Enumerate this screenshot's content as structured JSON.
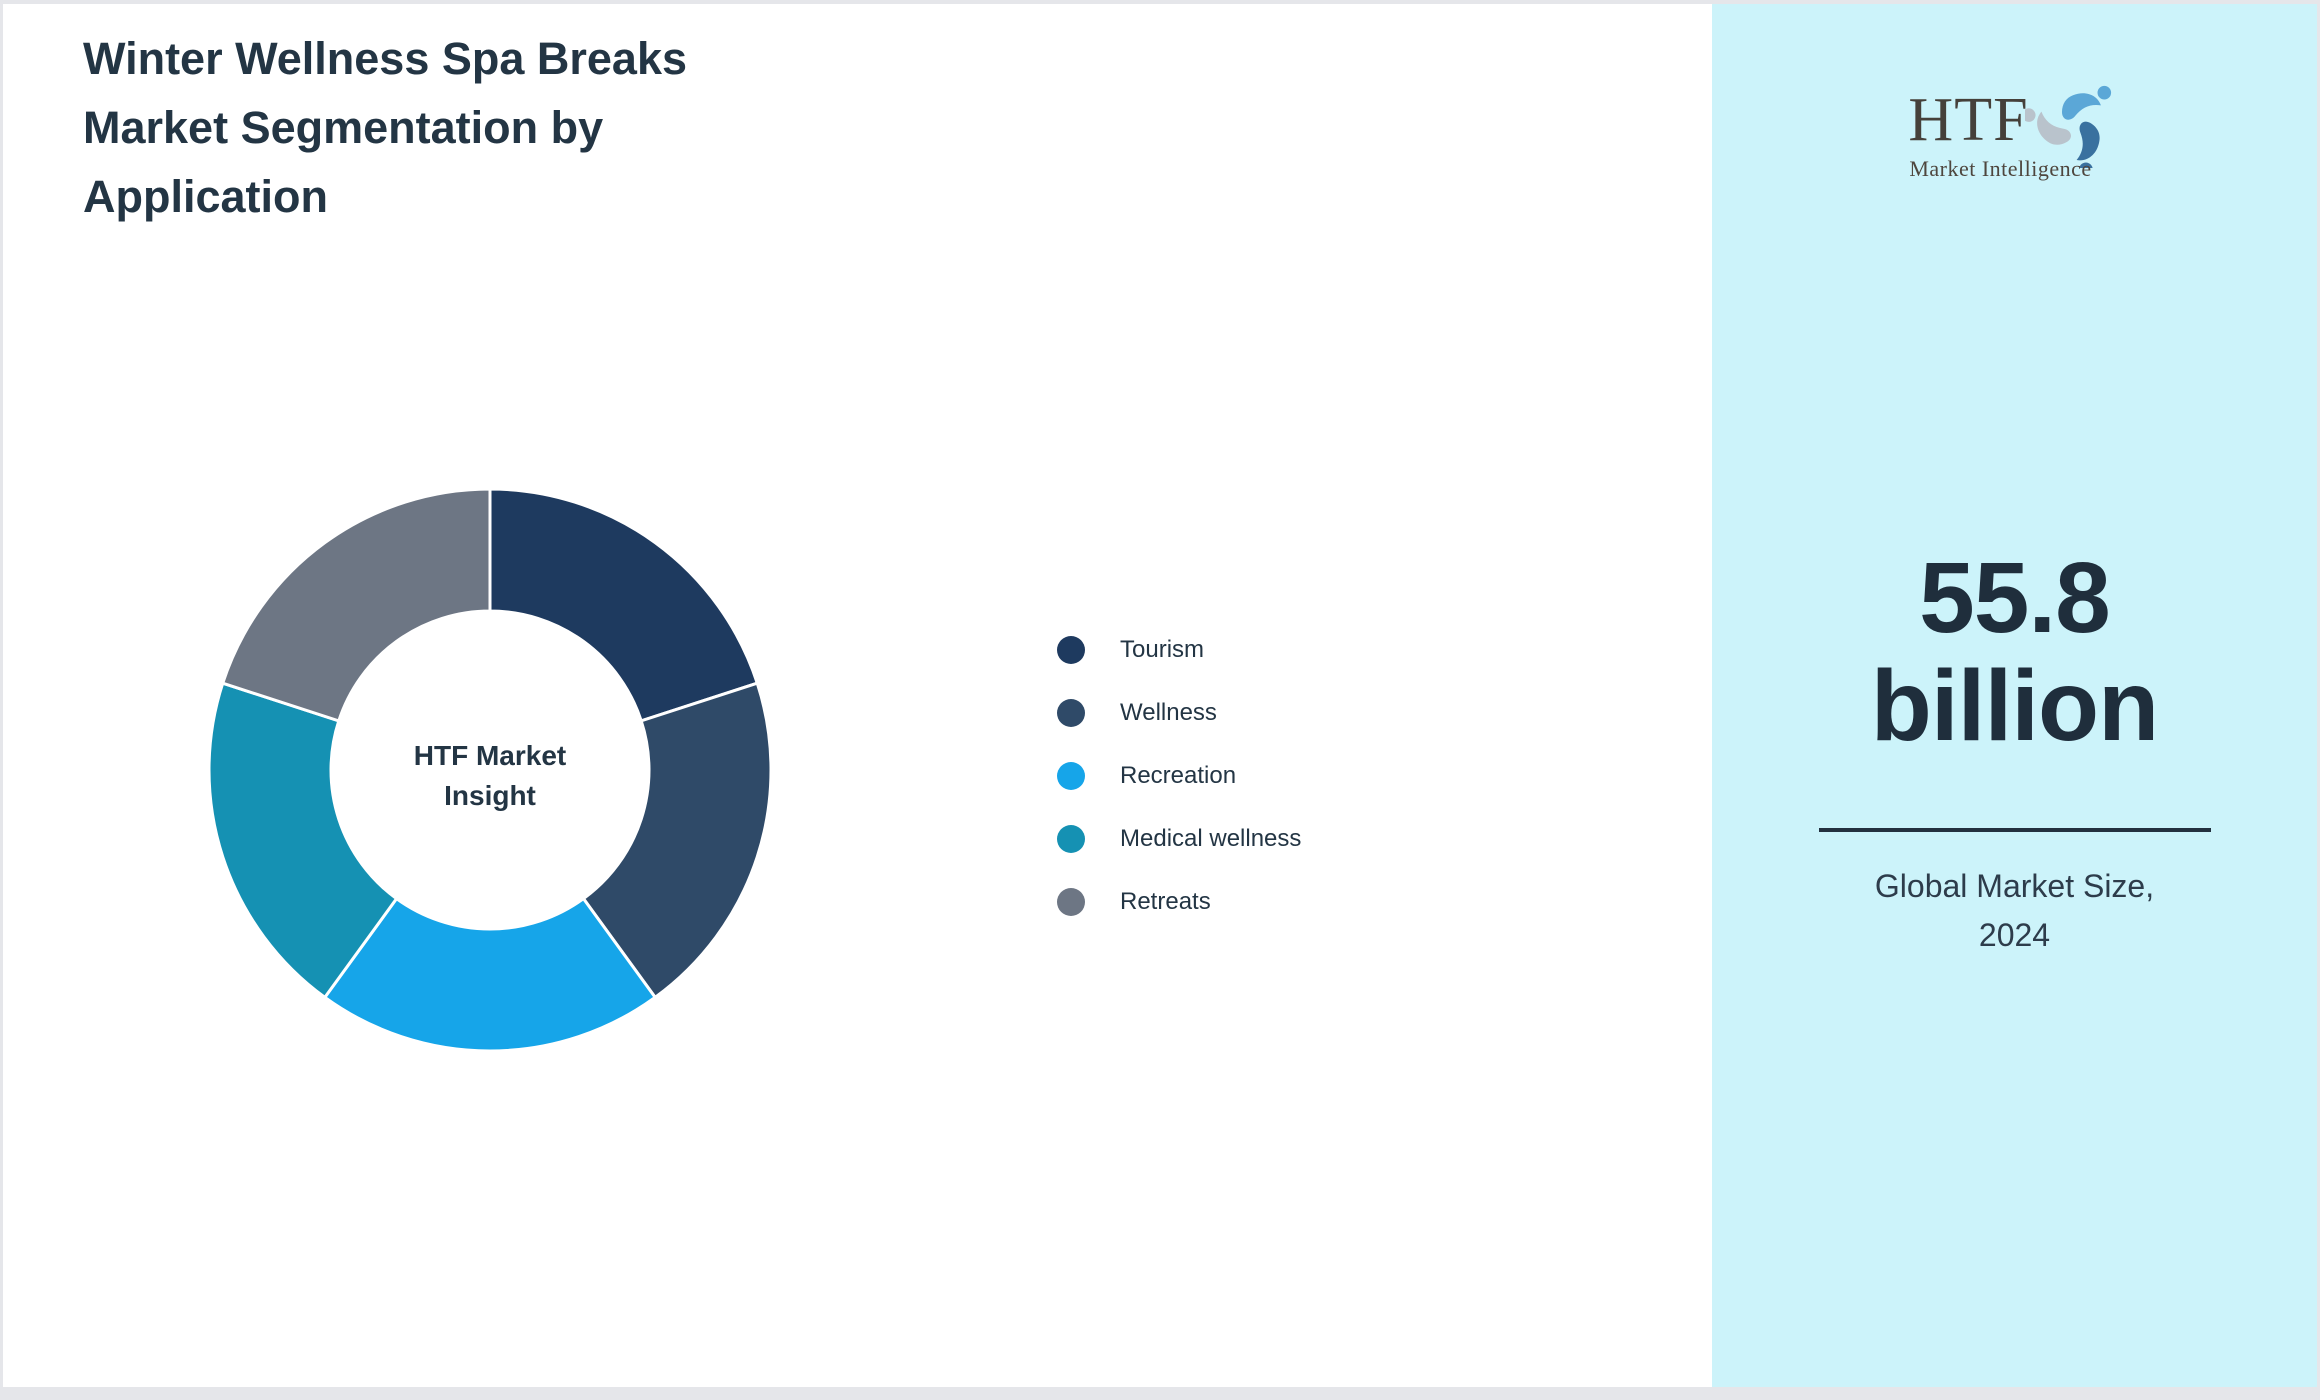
{
  "page": {
    "title_lines": [
      "Winter Wellness Spa Breaks",
      "Market Segmentation by",
      "Application"
    ]
  },
  "chart_data": {
    "type": "pie",
    "variant": "donut",
    "title": "Winter Wellness Spa Breaks Market Segmentation by Application",
    "center_label": "HTF Market Insight",
    "center_label_lines": [
      "HTF Market",
      "Insight"
    ],
    "legend_position": "right",
    "start_angle_deg": 0,
    "inner_radius_ratio": 0.566,
    "categories": [
      "Tourism",
      "Wellness",
      "Recreation",
      "Medical wellness",
      "Retreats"
    ],
    "values": [
      20,
      20,
      20,
      20,
      20
    ],
    "colors": [
      "#1e3a5f",
      "#2f4a68",
      "#16a5e9",
      "#1591b3",
      "#6d7684"
    ],
    "slice_gap_color": "#ffffff"
  },
  "sidebar": {
    "background_color": "#ccf3fa",
    "logo": {
      "text": "HTF",
      "subtext": "Market Intelligence",
      "swirl_colors": [
        "#5ba7d7",
        "#39719f",
        "#b9c3cc"
      ]
    },
    "market_size": {
      "value_lines": [
        "55.8",
        "billion"
      ],
      "caption_lines": [
        "Global Market Size,",
        "2024"
      ]
    }
  }
}
